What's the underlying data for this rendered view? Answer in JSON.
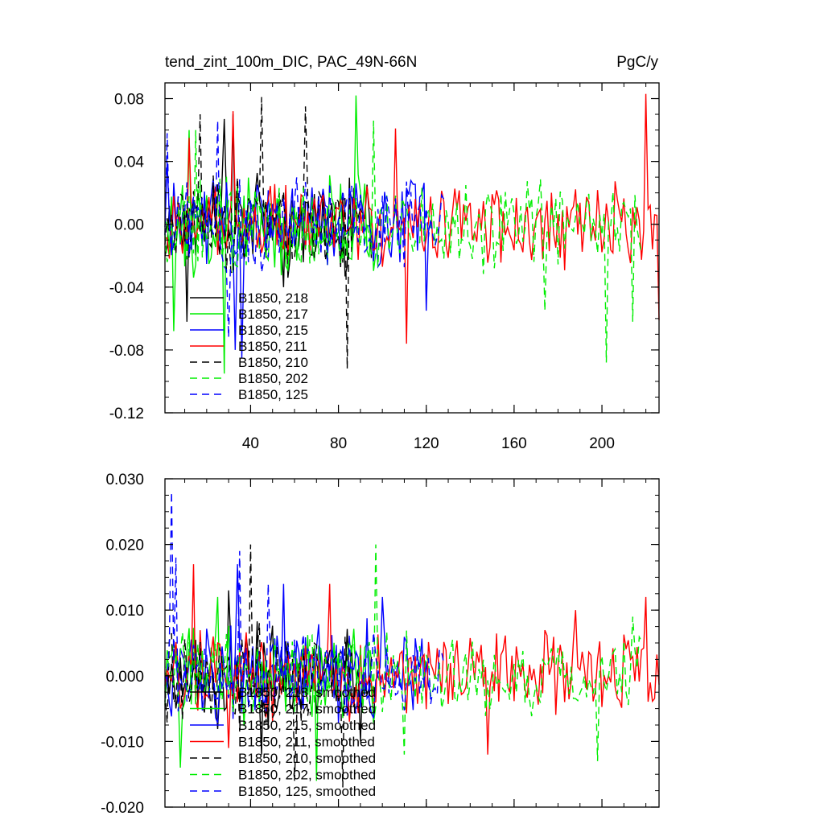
{
  "chart_data": [
    {
      "type": "line",
      "title_left": "tend_zint_100m_DIC, PAC_49N-66N",
      "title_right": "PgC/y",
      "xlabel": "",
      "ylabel": "",
      "xlim": [
        1,
        226
      ],
      "ylim": [
        -0.12,
        0.09
      ],
      "xticks": [
        40,
        80,
        120,
        160,
        200
      ],
      "xtick_labels": [
        "40",
        "80",
        "120",
        "160",
        "200"
      ],
      "yticks": [
        -0.12,
        -0.08,
        -0.04,
        0.0,
        0.04,
        0.08
      ],
      "ytick_labels": [
        "-0.12",
        "-0.08",
        "-0.04",
        "0.00",
        "0.04",
        "0.08"
      ],
      "legend_position": "lower-left",
      "series": [
        {
          "name": "B1850, 218",
          "color": "#000000",
          "dash": "solid",
          "length": 95,
          "amp": 0.025,
          "seed": 218,
          "spikes": [
            [
              11,
              -0.062
            ],
            [
              28,
              0.067
            ],
            [
              32,
              0.07
            ],
            [
              55,
              -0.04
            ]
          ]
        },
        {
          "name": "B1850, 217",
          "color": "#00ee00",
          "dash": "solid",
          "length": 97,
          "amp": 0.025,
          "seed": 217,
          "spikes": [
            [
              5,
              -0.068
            ],
            [
              12,
              0.06
            ],
            [
              28,
              -0.095
            ],
            [
              88,
              0.082
            ]
          ]
        },
        {
          "name": "B1850, 215",
          "color": "#0000ff",
          "dash": "solid",
          "length": 122,
          "amp": 0.022,
          "seed": 215,
          "spikes": [
            [
              2,
              0.04
            ],
            [
              33,
              -0.08
            ],
            [
              36,
              -0.085
            ],
            [
              120,
              -0.055
            ]
          ]
        },
        {
          "name": "B1850, 211",
          "color": "#ff0000",
          "dash": "solid",
          "length": 226,
          "amp": 0.02,
          "seed": 211,
          "spikes": [
            [
              12,
              0.055
            ],
            [
              32,
              0.072
            ],
            [
              106,
              0.061
            ],
            [
              111,
              -0.076
            ],
            [
              220,
              0.083
            ],
            [
              226,
              -0.061
            ]
          ]
        },
        {
          "name": "B1850, 210",
          "color": "#000000",
          "dash": "dash",
          "length": 85,
          "amp": 0.024,
          "seed": 210,
          "spikes": [
            [
              17,
              0.07
            ],
            [
              45,
              0.081
            ],
            [
              65,
              0.075
            ],
            [
              84,
              -0.092
            ]
          ]
        },
        {
          "name": "B1850, 202",
          "color": "#00ee00",
          "dash": "dash",
          "length": 218,
          "amp": 0.022,
          "seed": 202,
          "spikes": [
            [
              15,
              0.06
            ],
            [
              96,
              0.066
            ],
            [
              174,
              -0.055
            ],
            [
              202,
              -0.088
            ],
            [
              214,
              -0.062
            ]
          ]
        },
        {
          "name": "B1850, 125",
          "color": "#0000ff",
          "dash": "dash",
          "length": 128,
          "amp": 0.022,
          "seed": 125,
          "spikes": [
            [
              2,
              0.058
            ],
            [
              25,
              0.066
            ],
            [
              30,
              -0.072
            ]
          ]
        }
      ]
    },
    {
      "type": "line",
      "title_left": "",
      "title_right": "",
      "xlabel": "",
      "ylabel": "",
      "xlim": [
        1,
        226
      ],
      "ylim": [
        -0.02,
        0.03
      ],
      "xticks": [
        40,
        80,
        120,
        160,
        200
      ],
      "xtick_labels": [],
      "yticks": [
        -0.02,
        -0.01,
        0.0,
        0.01,
        0.02,
        0.03
      ],
      "ytick_labels": [
        "-0.020",
        "-0.010",
        "0.000",
        "0.010",
        "0.020",
        "0.030"
      ],
      "legend_position": "lower-left",
      "series": [
        {
          "name": "B1850, 218, smoothed",
          "color": "#000000",
          "dash": "solid",
          "length": 95,
          "amp": 0.006,
          "seed": 318,
          "spikes": [
            [
              30,
              0.013
            ],
            [
              45,
              -0.012
            ],
            [
              90,
              -0.01
            ]
          ]
        },
        {
          "name": "B1850, 217, smoothed",
          "color": "#00ee00",
          "dash": "solid",
          "length": 97,
          "amp": 0.006,
          "seed": 317,
          "spikes": [
            [
              8,
              -0.014
            ],
            [
              25,
              0.012
            ],
            [
              70,
              -0.016
            ]
          ]
        },
        {
          "name": "B1850, 215, smoothed",
          "color": "#0000ff",
          "dash": "solid",
          "length": 122,
          "amp": 0.006,
          "seed": 315,
          "spikes": [
            [
              34,
              0.017
            ],
            [
              55,
              0.014
            ],
            [
              100,
              0.012
            ]
          ]
        },
        {
          "name": "B1850, 211, smoothed",
          "color": "#ff0000",
          "dash": "solid",
          "length": 226,
          "amp": 0.005,
          "seed": 311,
          "spikes": [
            [
              14,
              0.017
            ],
            [
              30,
              -0.011
            ],
            [
              76,
              0.014
            ],
            [
              148,
              -0.012
            ],
            [
              188,
              0.01
            ],
            [
              220,
              0.012
            ]
          ]
        },
        {
          "name": "B1850, 210, smoothed",
          "color": "#000000",
          "dash": "dash",
          "length": 85,
          "amp": 0.006,
          "seed": 310,
          "spikes": [
            [
              40,
              0.02
            ],
            [
              60,
              -0.016
            ],
            [
              82,
              -0.017
            ]
          ]
        },
        {
          "name": "B1850, 202, smoothed",
          "color": "#00ee00",
          "dash": "dash",
          "length": 218,
          "amp": 0.005,
          "seed": 302,
          "spikes": [
            [
              97,
              0.02
            ],
            [
              110,
              -0.012
            ],
            [
              198,
              -0.013
            ],
            [
              214,
              0.009
            ]
          ]
        },
        {
          "name": "B1850, 125, smoothed",
          "color": "#0000ff",
          "dash": "dash",
          "length": 128,
          "amp": 0.005,
          "seed": 325,
          "spikes": [
            [
              4,
              0.028
            ],
            [
              6,
              0.018
            ],
            [
              35,
              0.019
            ],
            [
              48,
              0.014
            ]
          ]
        }
      ]
    }
  ]
}
